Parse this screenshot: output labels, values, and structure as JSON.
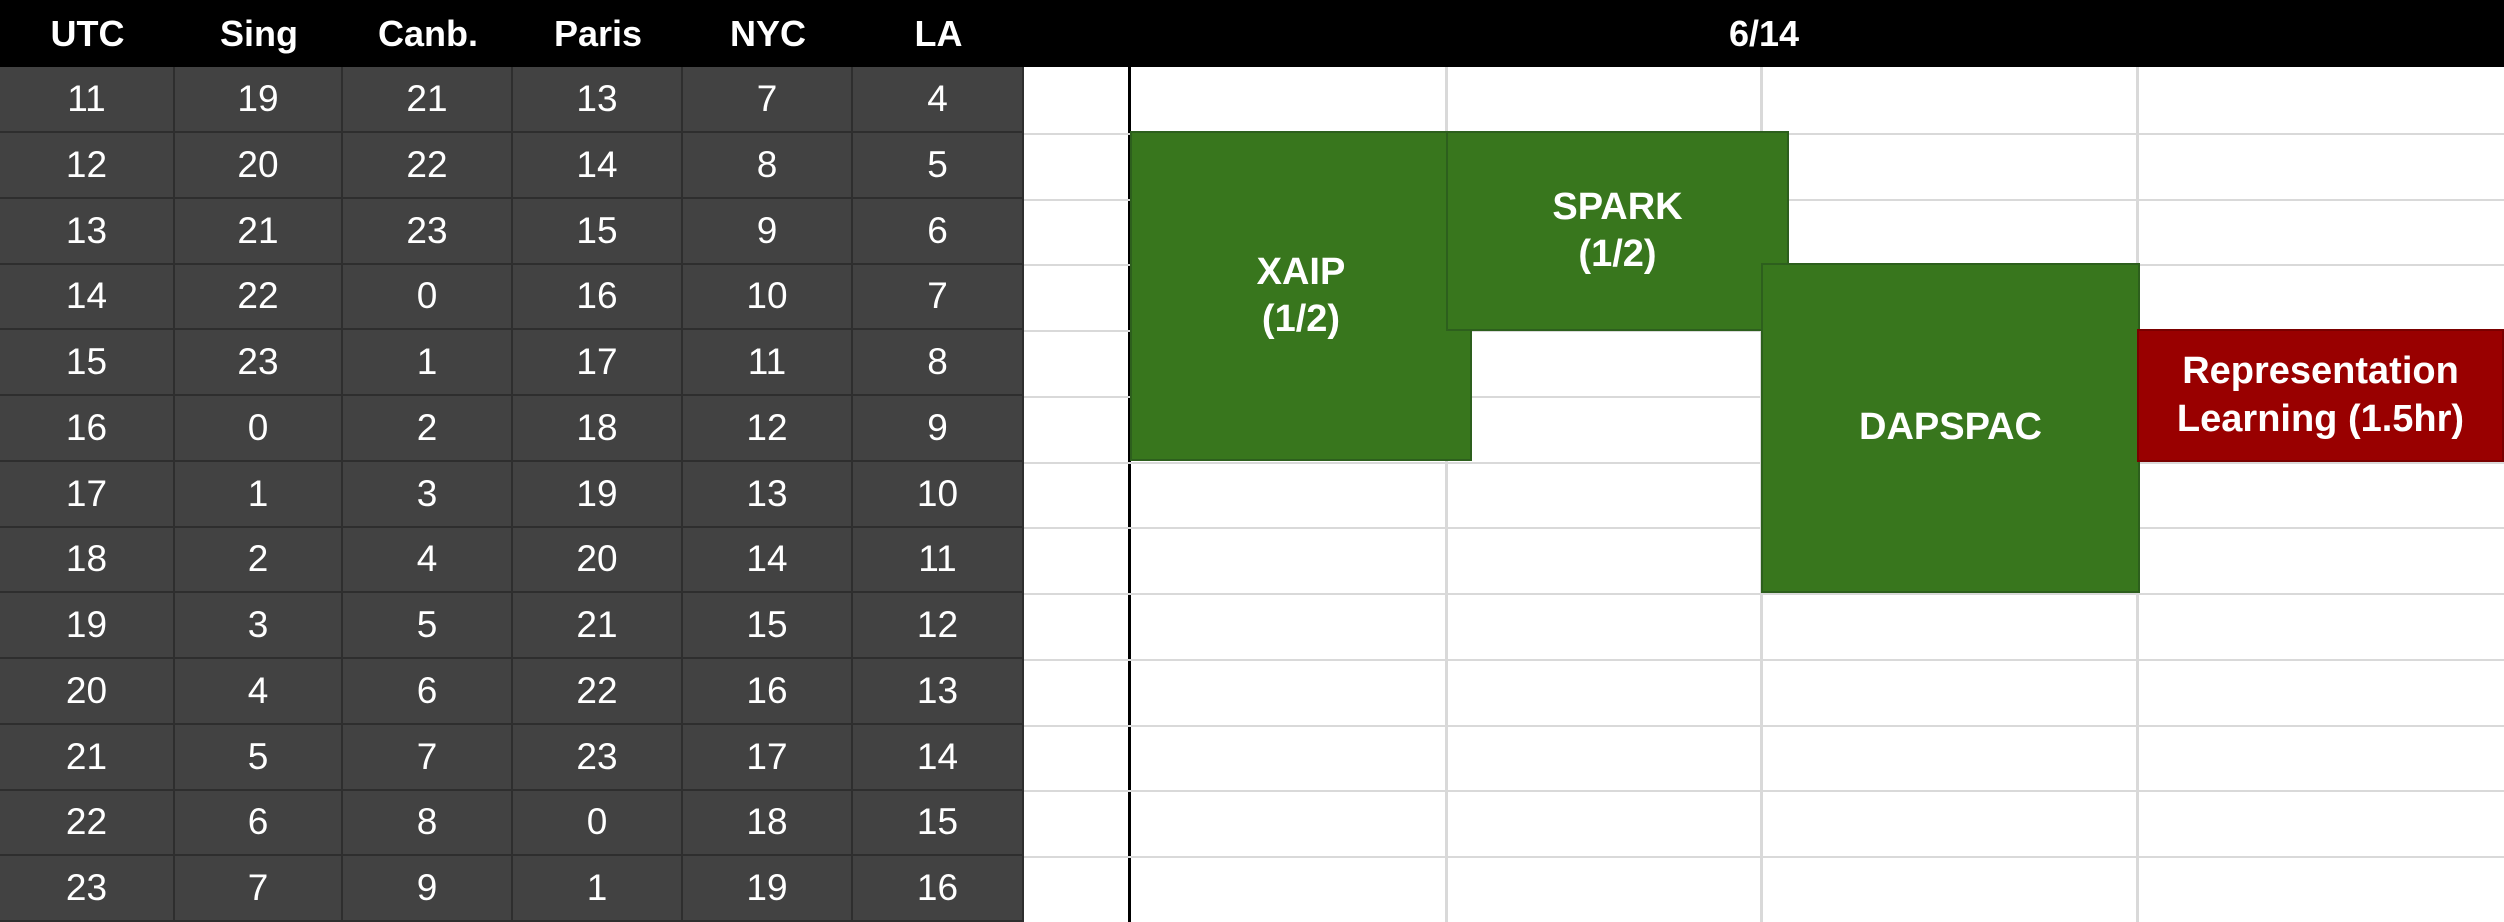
{
  "header": {
    "columns": [
      "UTC",
      "Sing",
      "Canb.",
      "Paris",
      "NYC",
      "LA"
    ],
    "date": "6/14"
  },
  "time_rows": [
    [
      "11",
      "19",
      "21",
      "13",
      "7",
      "4"
    ],
    [
      "12",
      "20",
      "22",
      "14",
      "8",
      "5"
    ],
    [
      "13",
      "21",
      "23",
      "15",
      "9",
      "6"
    ],
    [
      "14",
      "22",
      "0",
      "16",
      "10",
      "7"
    ],
    [
      "15",
      "23",
      "1",
      "17",
      "11",
      "8"
    ],
    [
      "16",
      "0",
      "2",
      "18",
      "12",
      "9"
    ],
    [
      "17",
      "1",
      "3",
      "19",
      "13",
      "10"
    ],
    [
      "18",
      "2",
      "4",
      "20",
      "14",
      "11"
    ],
    [
      "19",
      "3",
      "5",
      "21",
      "15",
      "12"
    ],
    [
      "20",
      "4",
      "6",
      "22",
      "16",
      "13"
    ],
    [
      "21",
      "5",
      "7",
      "23",
      "17",
      "14"
    ],
    [
      "22",
      "6",
      "8",
      "0",
      "18",
      "15"
    ],
    [
      "23",
      "7",
      "9",
      "1",
      "19",
      "16"
    ]
  ],
  "events": [
    {
      "label": "XAIP\n(1/2)",
      "color": "#38761d"
    },
    {
      "label": "SPARK\n(1/2)",
      "color": "#38761d"
    },
    {
      "label": "DAPSPAC",
      "color": "#38761d"
    },
    {
      "label": "Representation\nLearning (1.5hr)",
      "color": "#990000"
    }
  ]
}
